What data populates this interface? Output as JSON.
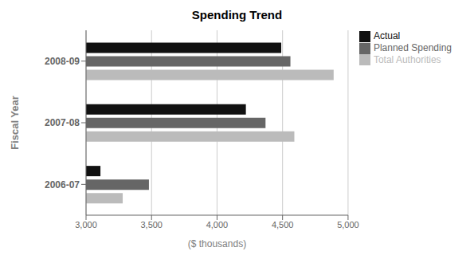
{
  "chart_data": {
    "type": "bar",
    "orientation": "horizontal",
    "title": "Spending Trend",
    "x_label": "($ thousands)",
    "y_label": "Fiscal Year",
    "categories": [
      "2006-07",
      "2007-08",
      "2008-09"
    ],
    "series": [
      {
        "name": "Actual",
        "color": "#111111",
        "values": [
          3110,
          4220,
          4490
        ]
      },
      {
        "name": "Planned Spending",
        "color": "#666666",
        "values": [
          3480,
          4370,
          4560
        ]
      },
      {
        "name": "Total Authorities",
        "color": "#bbbbbb",
        "values": [
          3280,
          4590,
          4890
        ]
      }
    ],
    "xlim": [
      3000,
      5000
    ],
    "xticks": [
      {
        "value": 3000,
        "label": "3,000"
      },
      {
        "value": 3500,
        "label": "3,500"
      },
      {
        "value": 4000,
        "label": "4,000"
      },
      {
        "value": 4500,
        "label": "4,500"
      },
      {
        "value": 5000,
        "label": "5,000"
      }
    ],
    "grid": true,
    "legend": "right"
  }
}
